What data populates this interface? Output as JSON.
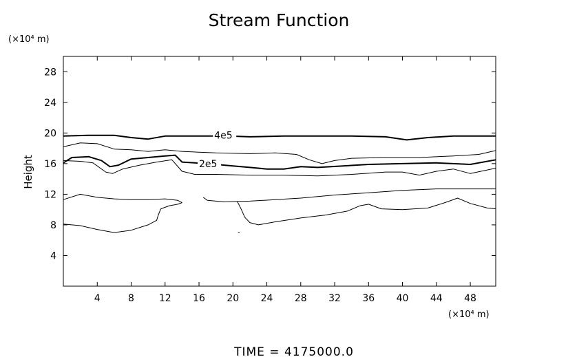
{
  "chart_data": {
    "type": "contour",
    "title": "Stream Function",
    "ylabel": "Height",
    "x_unit_label": "(×10⁴ m)",
    "y_unit_label": "(×10⁴ m)",
    "xlim": [
      0,
      51
    ],
    "ylim": [
      0,
      30
    ],
    "x_ticks": [
      4,
      8,
      12,
      16,
      20,
      24,
      28,
      32,
      36,
      40,
      44,
      48
    ],
    "y_ticks": [
      4,
      8,
      12,
      16,
      20,
      24,
      28
    ],
    "footer": "TIME  =  4175000.0",
    "contours": [
      {
        "level": "4e5",
        "labeled": true,
        "label_at": [
          17.8,
          19.7
        ],
        "weight": "bold",
        "points": [
          [
            0,
            19.6
          ],
          [
            3,
            19.7
          ],
          [
            6,
            19.7
          ],
          [
            8,
            19.4
          ],
          [
            10,
            19.2
          ],
          [
            12,
            19.6
          ],
          [
            14,
            19.6
          ],
          [
            16.5,
            19.6
          ],
          [
            19.5,
            19.6
          ],
          [
            22,
            19.5
          ],
          [
            26,
            19.6
          ],
          [
            30,
            19.6
          ],
          [
            34,
            19.6
          ],
          [
            38,
            19.5
          ],
          [
            40.5,
            19.1
          ],
          [
            43,
            19.4
          ],
          [
            46,
            19.6
          ],
          [
            51,
            19.6
          ]
        ]
      },
      {
        "level": "",
        "labeled": false,
        "weight": "thin",
        "points": [
          [
            0,
            18.2
          ],
          [
            2,
            18.7
          ],
          [
            4,
            18.6
          ],
          [
            6,
            17.9
          ],
          [
            8,
            17.8
          ],
          [
            10,
            17.6
          ],
          [
            12,
            17.8
          ],
          [
            14,
            17.6
          ],
          [
            16,
            17.5
          ],
          [
            18,
            17.4
          ],
          [
            22,
            17.3
          ],
          [
            25,
            17.4
          ],
          [
            27.5,
            17.2
          ],
          [
            29,
            16.5
          ],
          [
            30.5,
            16.0
          ],
          [
            32,
            16.4
          ],
          [
            34,
            16.7
          ],
          [
            38,
            16.8
          ],
          [
            42,
            16.8
          ],
          [
            46,
            17.0
          ],
          [
            49,
            17.2
          ],
          [
            51,
            17.7
          ]
        ]
      },
      {
        "level": "2e5",
        "labeled": true,
        "label_at": [
          16.0,
          16.0
        ],
        "weight": "bold",
        "points": [
          [
            0,
            16.1
          ],
          [
            1,
            16.8
          ],
          [
            3,
            16.9
          ],
          [
            4.5,
            16.4
          ],
          [
            5.5,
            15.6
          ],
          [
            6.5,
            15.8
          ],
          [
            8,
            16.6
          ],
          [
            10,
            16.8
          ],
          [
            12,
            17.0
          ],
          [
            13.2,
            17.1
          ],
          [
            14,
            16.2
          ],
          [
            15.5,
            16.1
          ],
          [
            18,
            15.9
          ],
          [
            20,
            15.7
          ],
          [
            22,
            15.5
          ],
          [
            24,
            15.3
          ],
          [
            26,
            15.3
          ],
          [
            28,
            15.6
          ],
          [
            30,
            15.5
          ],
          [
            33,
            15.7
          ],
          [
            36,
            15.9
          ],
          [
            40,
            16.0
          ],
          [
            44,
            16.1
          ],
          [
            48,
            15.9
          ],
          [
            51,
            16.5
          ]
        ]
      },
      {
        "level": "",
        "labeled": false,
        "weight": "thin",
        "points": [
          [
            0,
            16.4
          ],
          [
            2,
            16.3
          ],
          [
            3.5,
            16.1
          ],
          [
            5,
            14.9
          ],
          [
            5.8,
            14.7
          ],
          [
            7,
            15.3
          ],
          [
            9,
            15.8
          ],
          [
            11,
            16.2
          ],
          [
            12.8,
            16.5
          ],
          [
            14,
            15.0
          ],
          [
            15.5,
            14.6
          ],
          [
            18,
            14.6
          ],
          [
            22,
            14.5
          ],
          [
            26,
            14.5
          ],
          [
            30,
            14.4
          ],
          [
            34,
            14.6
          ],
          [
            38,
            14.9
          ],
          [
            40,
            14.9
          ],
          [
            42,
            14.5
          ],
          [
            44,
            15.0
          ],
          [
            46,
            15.3
          ],
          [
            48,
            14.7
          ],
          [
            51,
            15.4
          ]
        ]
      },
      {
        "level": "",
        "labeled": false,
        "weight": "thin",
        "points": [
          [
            0,
            11.3
          ],
          [
            2,
            12.0
          ],
          [
            4,
            11.6
          ],
          [
            6,
            11.4
          ],
          [
            8,
            11.3
          ],
          [
            10,
            11.3
          ],
          [
            12,
            11.4
          ],
          [
            13.5,
            11.2
          ],
          [
            14,
            10.9
          ]
        ]
      },
      {
        "level": "",
        "labeled": false,
        "weight": "thin",
        "points": [
          [
            16.5,
            11.6
          ],
          [
            17,
            11.2
          ],
          [
            19,
            11.0
          ],
          [
            22,
            11.1
          ],
          [
            25,
            11.3
          ],
          [
            28,
            11.5
          ],
          [
            32,
            11.9
          ],
          [
            36,
            12.2
          ],
          [
            40,
            12.5
          ],
          [
            44,
            12.7
          ],
          [
            48,
            12.7
          ],
          [
            51,
            12.7
          ]
        ]
      },
      {
        "level": "",
        "labeled": false,
        "weight": "thin",
        "points": [
          [
            0,
            8.1
          ],
          [
            2,
            7.9
          ],
          [
            4,
            7.4
          ],
          [
            6,
            7.0
          ],
          [
            8,
            7.3
          ],
          [
            10,
            8.0
          ],
          [
            11,
            8.6
          ],
          [
            11.2,
            9.3
          ],
          [
            11.5,
            10.1
          ],
          [
            12.5,
            10.5
          ],
          [
            13.5,
            10.7
          ],
          [
            14,
            10.9
          ]
        ]
      },
      {
        "level": "",
        "labeled": false,
        "weight": "thin",
        "points": [
          [
            20.5,
            11.1
          ],
          [
            21,
            10.0
          ],
          [
            21.4,
            9.0
          ],
          [
            22,
            8.3
          ],
          [
            23,
            8.0
          ],
          [
            25,
            8.4
          ],
          [
            28,
            8.9
          ],
          [
            31,
            9.3
          ],
          [
            33.5,
            9.8
          ],
          [
            35,
            10.5
          ],
          [
            36,
            10.7
          ],
          [
            37.5,
            10.1
          ],
          [
            40,
            10.0
          ],
          [
            43,
            10.2
          ],
          [
            45,
            10.9
          ],
          [
            46.5,
            11.5
          ],
          [
            48,
            10.8
          ],
          [
            50,
            10.2
          ],
          [
            51,
            10.1
          ]
        ]
      },
      {
        "level": "",
        "labeled": false,
        "weight": "thin",
        "points": [
          [
            20.6,
            7.0
          ],
          [
            20.8,
            7.0
          ]
        ]
      }
    ]
  }
}
